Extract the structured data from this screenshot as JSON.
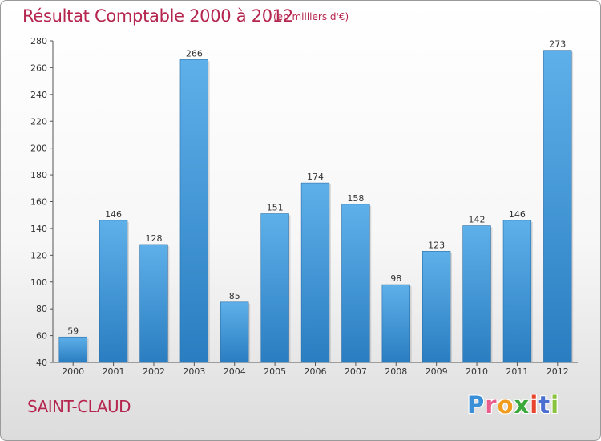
{
  "header": {
    "title": "Résultat Comptable 2000 à 2012",
    "subtitle": "(en milliers d'€)"
  },
  "footer": {
    "commune": "SAINT-CLAUD",
    "logo_text": "Proxiti",
    "logo_colors": [
      "#3a8fd9",
      "#e85d8b",
      "#f29c1f",
      "#3aa83a",
      "#e8452f",
      "#4a6fd1",
      "#8ac43f"
    ]
  },
  "colors": {
    "bar_light": "#5eb0ea",
    "bar_dark": "#2a7dc0",
    "title": "#b5264f"
  },
  "chart_data": {
    "type": "bar",
    "title": "Résultat Comptable 2000 à 2012",
    "subtitle": "(en milliers d'€)",
    "xlabel": "",
    "ylabel": "",
    "categories": [
      "2000",
      "2001",
      "2002",
      "2003",
      "2004",
      "2005",
      "2006",
      "2007",
      "2008",
      "2009",
      "2010",
      "2011",
      "2012"
    ],
    "values": [
      59,
      146,
      128,
      266,
      85,
      151,
      174,
      158,
      98,
      123,
      142,
      146,
      273
    ],
    "ylim": [
      40,
      280
    ],
    "yticks": [
      40,
      60,
      80,
      100,
      120,
      140,
      160,
      180,
      200,
      220,
      240,
      260,
      280
    ],
    "grid": false,
    "data_labels": true
  }
}
